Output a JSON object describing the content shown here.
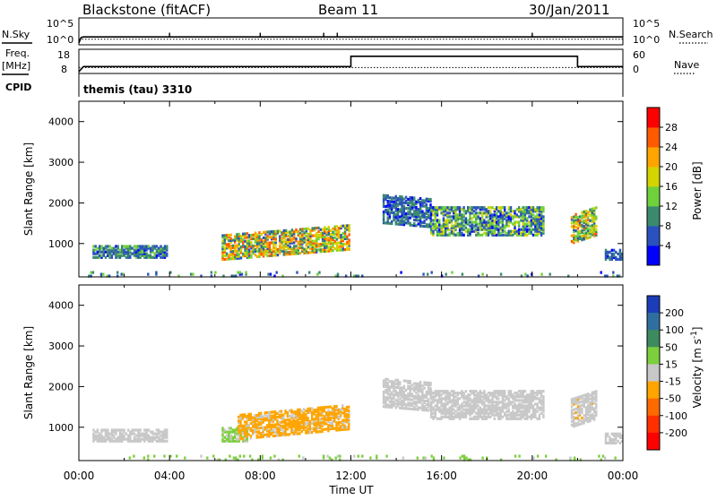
{
  "header": {
    "station": "Blackstone (fitACF)",
    "beam": "Beam 11",
    "date": "30/Jan/2011"
  },
  "summary": {
    "nsky_label": "N.Sky",
    "nsearch_label": "N.Search",
    "nsky_ticks": [
      "10^5",
      "10^0"
    ],
    "nsearch_ticks": [
      "10^5",
      "10^0"
    ],
    "freq_label_line1": "Freq.",
    "freq_label_line2": "[MHz]",
    "freq_ticks": [
      "18",
      "8"
    ],
    "nave_label": "Nave",
    "nave_ticks": [
      "60",
      "0"
    ],
    "cpid_label": "CPID",
    "cpid_text": "themis (tau) 3310"
  },
  "chart_data": [
    {
      "type": "line",
      "panel": "noise",
      "series": [
        {
          "name": "N.Sky",
          "x": [
            0.0,
            0.1,
            0.2,
            2.0,
            4.0,
            6.0,
            8.0,
            10.0,
            12.0,
            14.0,
            16.0,
            18.0,
            20.0,
            22.0,
            24.0
          ],
          "y": [
            0.0,
            1.2,
            1.3,
            1.3,
            1.3,
            1.3,
            1.3,
            1.3,
            1.3,
            1.3,
            1.3,
            1.3,
            1.3,
            1.3,
            1.3
          ]
        },
        {
          "name": "N.Search",
          "x": [
            0.0,
            24.0
          ],
          "y": [
            0.8,
            0.8
          ]
        }
      ],
      "spikes_x": [
        4.0,
        8.0,
        10.8,
        11.4,
        20.0
      ],
      "ylim": [
        0,
        5
      ]
    },
    {
      "type": "line",
      "panel": "frequency",
      "series": [
        {
          "name": "Freq.",
          "x": [
            0.0,
            0.2,
            12.0,
            12.0,
            22.0,
            22.0,
            24.0
          ],
          "y": [
            8.0,
            10.5,
            10.5,
            15.5,
            15.5,
            10.5,
            10.5
          ]
        },
        {
          "name": "Nave",
          "x": [
            0.0,
            24.0
          ],
          "y": [
            10.0,
            10.0
          ]
        }
      ],
      "ylim": [
        8,
        18
      ]
    },
    {
      "type": "scatter",
      "panel": "power",
      "xlabel": "",
      "ylabel": "Slant Range [km]",
      "xlim": [
        0,
        24
      ],
      "ylim": [
        180,
        4500
      ],
      "yticks": [
        "1000",
        "2000",
        "3000",
        "4000"
      ],
      "colorbar": {
        "label": "Power [dB]",
        "ticks": [
          "4",
          "8",
          "12",
          "16",
          "20",
          "24",
          "28"
        ],
        "colors": [
          "#0000ff",
          "#2a52be",
          "#3b8a6e",
          "#6fd13b",
          "#d4d400",
          "#ffa500",
          "#ff5a00",
          "#ff0000"
        ],
        "range": [
          0,
          32
        ]
      },
      "clusters": [
        {
          "t0": 0.6,
          "t1": 3.9,
          "r0": 650,
          "r1": 950,
          "tilt": 0,
          "v0": 3,
          "v1": 14
        },
        {
          "t0": 6.3,
          "t1": 11.9,
          "r0": 600,
          "r1": 1200,
          "tilt": 250,
          "v0": 6,
          "v1": 28
        },
        {
          "t0": 13.4,
          "t1": 15.5,
          "r0": 1500,
          "r1": 2200,
          "tilt": -100,
          "v0": 3,
          "v1": 12
        },
        {
          "t0": 15.5,
          "t1": 20.5,
          "r0": 1200,
          "r1": 1900,
          "tilt": 0,
          "v0": 3,
          "v1": 18
        },
        {
          "t0": 21.7,
          "t1": 22.8,
          "r0": 1000,
          "r1": 1700,
          "tilt": 200,
          "v0": 6,
          "v1": 26
        },
        {
          "t0": 23.2,
          "t1": 24.0,
          "r0": 600,
          "r1": 850,
          "tilt": 0,
          "v0": 3,
          "v1": 10
        },
        {
          "t0": 0.4,
          "t1": 23.9,
          "r0": 190,
          "r1": 320,
          "tilt": 0,
          "v0": 3,
          "v1": 16,
          "sparse": true
        }
      ]
    },
    {
      "type": "scatter",
      "panel": "velocity",
      "xlabel": "Time UT",
      "ylabel": "Slant Range [km]",
      "xlim": [
        0,
        24
      ],
      "ylim": [
        180,
        4500
      ],
      "xticks": [
        "00:00",
        "04:00",
        "08:00",
        "12:00",
        "16:00",
        "20:00",
        "00:00"
      ],
      "yticks": [
        "1000",
        "2000",
        "3000",
        "4000"
      ],
      "colorbar": {
        "label": "Velocity [m s^-1]",
        "ticks": [
          "200",
          "100",
          "50",
          "15",
          "-15",
          "-50",
          "-100",
          "-200"
        ],
        "colors": [
          "#1c3db8",
          "#2f6fa0",
          "#3d8a5e",
          "#7ccf3d",
          "#c8c8c8",
          "#ffa500",
          "#ff6a00",
          "#ff3000",
          "#ff0000"
        ],
        "range": [
          -250,
          250
        ]
      },
      "clusters": [
        {
          "t0": 0.6,
          "t1": 3.9,
          "r0": 650,
          "r1": 950,
          "tilt": 0,
          "v0": -10,
          "v1": 10
        },
        {
          "t0": 6.3,
          "t1": 7.4,
          "r0": 650,
          "r1": 1000,
          "tilt": 0,
          "v0": 20,
          "v1": 60
        },
        {
          "t0": 7.0,
          "t1": 11.9,
          "r0": 700,
          "r1": 1300,
          "tilt": 250,
          "v0": -40,
          "v1": -25
        },
        {
          "t0": 13.4,
          "t1": 15.5,
          "r0": 1500,
          "r1": 2200,
          "tilt": -100,
          "v0": -10,
          "v1": 10
        },
        {
          "t0": 15.5,
          "t1": 20.5,
          "r0": 1200,
          "r1": 1900,
          "tilt": 0,
          "v0": -10,
          "v1": 10
        },
        {
          "t0": 21.7,
          "t1": 22.8,
          "r0": 1000,
          "r1": 1700,
          "tilt": 200,
          "v0": -30,
          "v1": 20
        },
        {
          "t0": 23.2,
          "t1": 24.0,
          "r0": 600,
          "r1": 850,
          "tilt": 0,
          "v0": -10,
          "v1": 10
        },
        {
          "t0": 0.4,
          "t1": 23.9,
          "r0": 190,
          "r1": 320,
          "tilt": 0,
          "v0": 20,
          "v1": 60,
          "sparse": true
        }
      ]
    }
  ]
}
